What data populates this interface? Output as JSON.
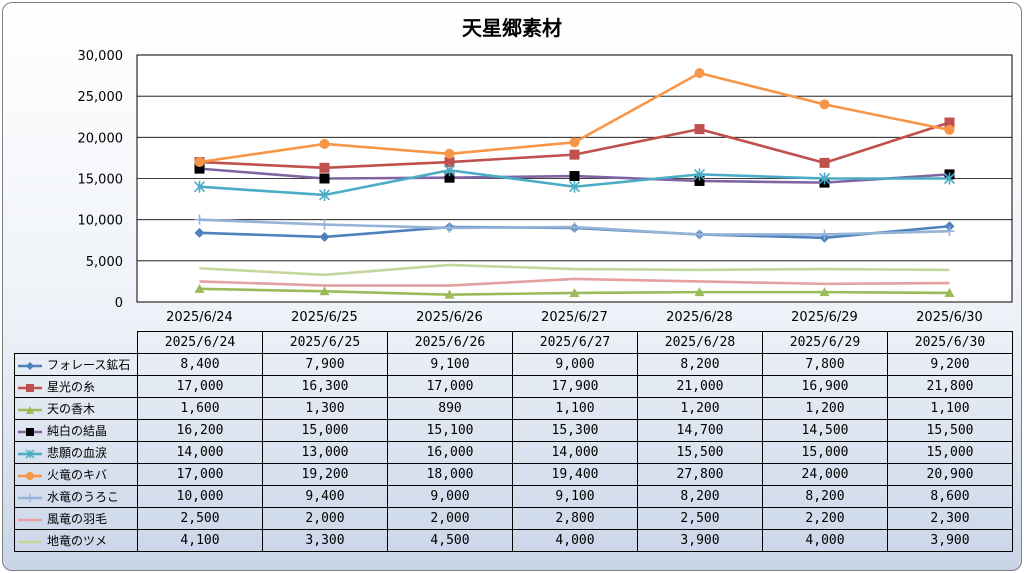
{
  "chart_data": {
    "type": "line",
    "title": "天星郷素材",
    "categories": [
      "2025/6/24",
      "2025/6/25",
      "2025/6/26",
      "2025/6/27",
      "2025/6/28",
      "2025/6/29",
      "2025/6/30"
    ],
    "ylim": [
      0,
      30000
    ],
    "yticks": [
      "0",
      "5,000",
      "10,000",
      "15,000",
      "20,000",
      "25,000",
      "30,000"
    ],
    "grid": true,
    "legend": "table-left",
    "series": [
      {
        "name": "フォレース鉱石",
        "color": "#4F81BD",
        "marker": "diamond",
        "values": [
          8400,
          7900,
          9100,
          9000,
          8200,
          7800,
          9200
        ],
        "labels": [
          "8,400",
          "7,900",
          "9,100",
          "9,000",
          "8,200",
          "7,800",
          "9,200"
        ]
      },
      {
        "name": "星光の糸",
        "color": "#C0504D",
        "marker": "square",
        "values": [
          17000,
          16300,
          17000,
          17900,
          21000,
          16900,
          21800
        ],
        "labels": [
          "17,000",
          "16,300",
          "17,000",
          "17,900",
          "21,000",
          "16,900",
          "21,800"
        ]
      },
      {
        "name": "天の香木",
        "color": "#9BBB59",
        "marker": "triangle",
        "values": [
          1600,
          1300,
          890,
          1100,
          1200,
          1200,
          1100
        ],
        "labels": [
          "1,600",
          "1,300",
          "890",
          "1,100",
          "1,200",
          "1,200",
          "1,100"
        ]
      },
      {
        "name": "純白の結晶",
        "color": "#8064A2",
        "marker": "blacksquare",
        "values": [
          16200,
          15000,
          15100,
          15300,
          14700,
          14500,
          15500
        ],
        "labels": [
          "16,200",
          "15,000",
          "15,100",
          "15,300",
          "14,700",
          "14,500",
          "15,500"
        ]
      },
      {
        "name": "悲願の血涙",
        "color": "#4BACC6",
        "marker": "asterisk",
        "values": [
          14000,
          13000,
          16000,
          14000,
          15500,
          15000,
          15000
        ],
        "labels": [
          "14,000",
          "13,000",
          "16,000",
          "14,000",
          "15,500",
          "15,000",
          "15,000"
        ]
      },
      {
        "name": "火竜のキバ",
        "color": "#F79646",
        "marker": "circle",
        "values": [
          17000,
          19200,
          18000,
          19400,
          27800,
          24000,
          20900
        ],
        "labels": [
          "17,000",
          "19,200",
          "18,000",
          "19,400",
          "27,800",
          "24,000",
          "20,900"
        ]
      },
      {
        "name": "水竜のうろこ",
        "color": "#95B3D7",
        "marker": "plus",
        "values": [
          10000,
          9400,
          9000,
          9100,
          8200,
          8200,
          8600
        ],
        "labels": [
          "10,000",
          "9,400",
          "9,000",
          "9,100",
          "8,200",
          "8,200",
          "8,600"
        ]
      },
      {
        "name": "風竜の羽毛",
        "color": "#E6A0A0",
        "marker": "none",
        "values": [
          2500,
          2000,
          2000,
          2800,
          2500,
          2200,
          2300
        ],
        "labels": [
          "2,500",
          "2,000",
          "2,000",
          "2,800",
          "2,500",
          "2,200",
          "2,300"
        ]
      },
      {
        "name": "地竜のツメ",
        "color": "#C4D79B",
        "marker": "none",
        "values": [
          4100,
          3300,
          4500,
          4000,
          3900,
          4000,
          3900
        ],
        "labels": [
          "4,100",
          "3,300",
          "4,500",
          "4,000",
          "3,900",
          "4,000",
          "3,900"
        ]
      }
    ]
  }
}
